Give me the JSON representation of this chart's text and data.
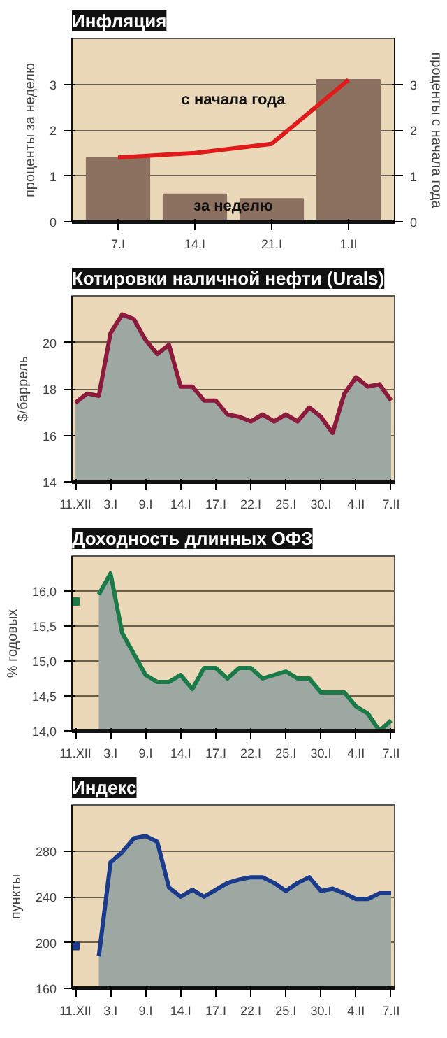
{
  "chart_data": [
    {
      "type": "bar",
      "title": "Инфляция",
      "ylabel": "проценты за неделю",
      "y2label": "проценты с начала года",
      "categories": [
        "7.I",
        "14.I",
        "21.I",
        "1.II"
      ],
      "ylim": [
        0,
        4
      ],
      "yticks": [
        0,
        1,
        2,
        3
      ],
      "y2lim": [
        0,
        4
      ],
      "y2ticks": [
        0,
        1,
        2,
        3
      ],
      "grid": "y",
      "series": [
        {
          "name": "за неделю",
          "type": "bar",
          "color": "#8c7160",
          "values": [
            1.4,
            0.6,
            0.5,
            3.1
          ]
        },
        {
          "name": "с начала года",
          "type": "line",
          "axis": "y2",
          "color": "#e01b1b",
          "values": [
            1.4,
            1.5,
            1.7,
            3.1
          ]
        }
      ]
    },
    {
      "type": "area",
      "title": "Котировки наличной нефти (Urals)",
      "ylabel": "$/баррель",
      "categories": [
        "11.XII",
        null,
        null,
        "3.I",
        null,
        null,
        "9.I",
        null,
        null,
        "14.I",
        null,
        null,
        "17.I",
        null,
        null,
        "22.I",
        null,
        null,
        "25.I",
        null,
        null,
        "30.I",
        null,
        null,
        "4.II",
        null,
        null,
        "7.II"
      ],
      "ylim": [
        14,
        22
      ],
      "yticks": [
        14,
        16,
        18,
        20
      ],
      "grid": "y",
      "series": [
        {
          "color": "#8b1a3c",
          "values": [
            17.4,
            17.8,
            17.7,
            20.4,
            21.2,
            21.0,
            20.1,
            19.5,
            19.9,
            18.1,
            18.1,
            17.5,
            17.5,
            16.9,
            16.8,
            16.6,
            16.9,
            16.6,
            16.9,
            16.6,
            17.2,
            16.8,
            16.1,
            17.8,
            18.5,
            18.1,
            18.2,
            17.5
          ]
        }
      ]
    },
    {
      "type": "area",
      "title": "Доходность длинных ОФЗ",
      "ylabel": "% годовых",
      "categories": [
        "11.XII",
        null,
        null,
        "3.I",
        null,
        null,
        "9.I",
        null,
        null,
        "14.I",
        null,
        null,
        "17.I",
        null,
        null,
        "22.I",
        null,
        null,
        "25.I",
        null,
        null,
        "30.I",
        null,
        null,
        "4.II",
        null,
        null,
        "7.II"
      ],
      "ylim": [
        14,
        16.5
      ],
      "yticks": [
        {
          "value": 14,
          "label": "14,0"
        },
        {
          "value": 14.5,
          "label": "14,5"
        },
        {
          "value": 15,
          "label": "15,0"
        },
        {
          "value": 15.5,
          "label": "15,5"
        },
        {
          "value": 16,
          "label": "16,0"
        }
      ],
      "grid": "y",
      "series": [
        {
          "type": "scatter",
          "marker": "square",
          "color": "#1a7a48",
          "values": [
            15.85,
            null,
            null,
            null,
            null,
            null,
            null,
            null,
            null,
            null,
            null,
            null,
            null,
            null,
            null,
            null,
            null,
            null,
            null,
            null,
            null,
            null,
            null,
            null,
            null,
            null,
            null,
            null
          ]
        },
        {
          "color": "#1a7a48",
          "values": [
            null,
            null,
            15.95,
            16.25,
            15.4,
            15.1,
            14.8,
            14.7,
            14.7,
            14.8,
            14.6,
            14.9,
            14.9,
            14.75,
            14.9,
            14.9,
            14.75,
            14.8,
            14.85,
            14.75,
            14.75,
            14.55,
            14.55,
            14.55,
            14.35,
            14.25,
            14.0,
            14.15
          ]
        }
      ]
    },
    {
      "type": "area",
      "title": "Индекс",
      "ylabel": "пункты",
      "categories": [
        "11.XII",
        null,
        null,
        "3.I",
        null,
        null,
        "9.I",
        null,
        null,
        "14.I",
        null,
        null,
        "17.I",
        null,
        null,
        "22.I",
        null,
        null,
        "25.I",
        null,
        null,
        "30.I",
        null,
        null,
        "4.II",
        null,
        null,
        "7.II"
      ],
      "ylim": [
        160,
        320
      ],
      "yticks": [
        160,
        200,
        240,
        280
      ],
      "grid": "y",
      "series": [
        {
          "type": "scatter",
          "marker": "square",
          "color": "#1a3a8c",
          "values": [
            197,
            null,
            null,
            null,
            null,
            null,
            null,
            null,
            null,
            null,
            null,
            null,
            null,
            null,
            null,
            null,
            null,
            null,
            null,
            null,
            null,
            null,
            null,
            null,
            null,
            null,
            null,
            null
          ]
        },
        {
          "color": "#1a3a8c",
          "values": [
            null,
            null,
            188,
            270,
            279,
            291,
            293,
            288,
            248,
            240,
            246,
            240,
            246,
            252,
            255,
            257,
            257,
            252,
            245,
            252,
            257,
            245,
            247,
            243,
            238,
            238,
            243,
            243
          ]
        }
      ]
    }
  ]
}
